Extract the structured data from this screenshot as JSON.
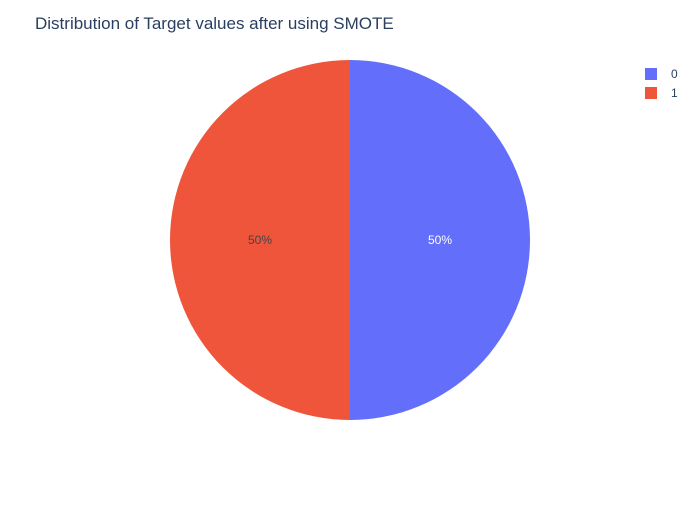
{
  "chart_data": {
    "type": "pie",
    "title": "Distribution of Target values after using SMOTE",
    "categories": [
      "0",
      "1"
    ],
    "values": [
      50,
      50
    ],
    "labels": [
      "50%",
      "50%"
    ],
    "colors": [
      "#636efa",
      "#ef553b"
    ],
    "label_colors": [
      "#ffffff",
      "#444444"
    ],
    "legend": {
      "placement": "top-right",
      "entries": [
        "0",
        "1"
      ]
    }
  }
}
